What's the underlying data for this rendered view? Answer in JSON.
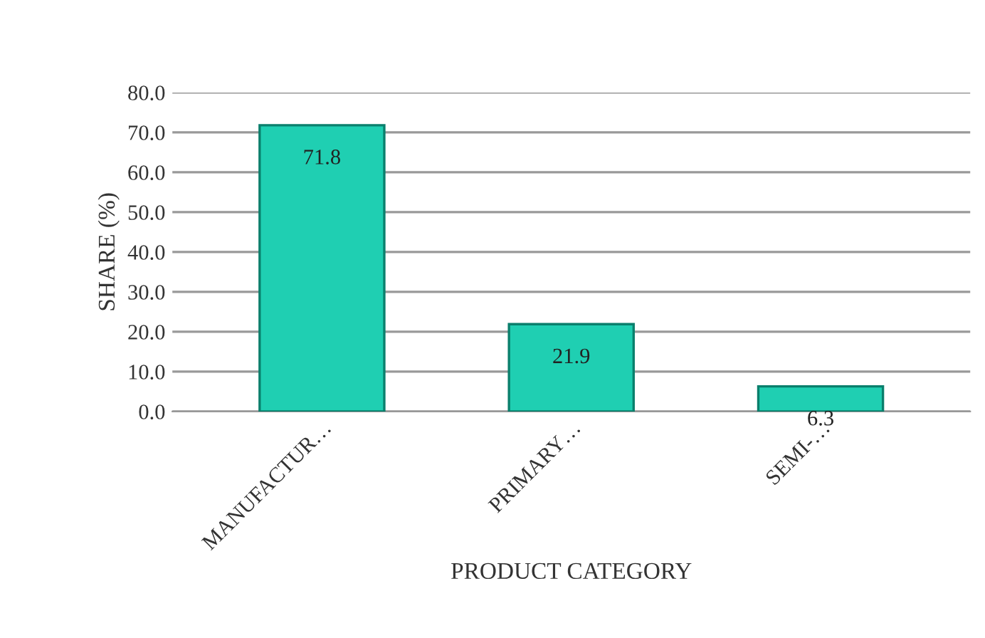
{
  "chart_data": {
    "type": "bar",
    "xlabel": "PRODUCT CATEGORY",
    "ylabel": "SHARE (%)",
    "categories": [
      "MANUFACTUR…",
      "PRIMARY…",
      "SEMI-…"
    ],
    "values": [
      71.8,
      21.9,
      6.3
    ],
    "color": "#1fcfb2",
    "ylim": [
      0,
      80
    ],
    "yticks": [
      {
        "value": 0,
        "label": "0.0"
      },
      {
        "value": 10,
        "label": "10.0"
      },
      {
        "value": 20,
        "label": "20.0"
      },
      {
        "value": 30,
        "label": "30.0"
      },
      {
        "value": 40,
        "label": "40.0"
      },
      {
        "value": 50,
        "label": "50.0"
      },
      {
        "value": 60,
        "label": "60.0"
      },
      {
        "value": 70,
        "label": "70.0"
      },
      {
        "value": 80,
        "label": "80.0"
      }
    ],
    "grid": "y",
    "data_labels": true
  }
}
